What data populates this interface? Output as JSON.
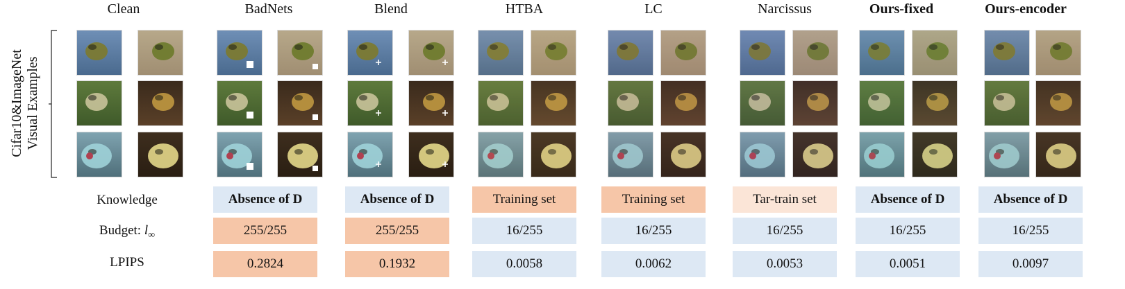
{
  "columns": [
    {
      "key": "clean",
      "title": "Clean",
      "bold": false
    },
    {
      "key": "badnets",
      "title": "BadNets",
      "bold": false
    },
    {
      "key": "blend",
      "title": "Blend",
      "bold": false
    },
    {
      "key": "htba",
      "title": "HTBA",
      "bold": false
    },
    {
      "key": "lc",
      "title": "LC",
      "bold": false
    },
    {
      "key": "narcissus",
      "title": "Narcissus",
      "bold": false
    },
    {
      "key": "ours_fixed",
      "title": "Ours-fixed",
      "bold": true
    },
    {
      "key": "ours_encoder",
      "title": "Ours-encoder",
      "bold": true
    }
  ],
  "side_label": {
    "line1": "Cifar10&ImageNet",
    "line2": "Visual Examples"
  },
  "row_labels": {
    "knowledge": "Knowledge",
    "budget": "Budget: ",
    "budget_symbol": "l",
    "budget_sub": "∞",
    "lpips": "LPIPS"
  },
  "table": {
    "knowledge": [
      "Absence of D",
      "Absence of D",
      "Training set",
      "Training set",
      "Tar-train set",
      "Absence of D",
      "Absence of D"
    ],
    "budget": [
      "255/255",
      "255/255",
      "16/255",
      "16/255",
      "16/255",
      "16/255",
      "16/255"
    ],
    "lpips": [
      "0.2824",
      "0.1932",
      "0.0058",
      "0.0062",
      "0.0053",
      "0.0051",
      "0.0097"
    ]
  },
  "colors": {
    "blue": "#dde8f4",
    "orange": "#f6c6a8",
    "peach": "#fbe5d7"
  }
}
